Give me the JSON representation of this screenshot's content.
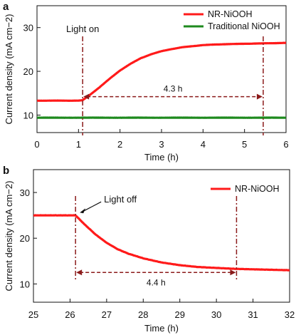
{
  "colors": {
    "nr": "#ff1a1a",
    "trad": "#1e8a1e",
    "annot": "#8b1a1a",
    "axis": "#111111"
  },
  "chart_data": [
    {
      "panel_label": "a",
      "type": "line",
      "xlabel": "Time (h)",
      "ylabel": "Current density (mA cm−2)",
      "xlim": [
        0,
        6
      ],
      "ylim": [
        6,
        35
      ],
      "xticks": [
        0,
        1,
        2,
        3,
        4,
        5,
        6
      ],
      "yticks": [
        10,
        20,
        30
      ],
      "legend_position": "top-right",
      "series": [
        {
          "name": "NR-NiOOH",
          "color_key": "nr",
          "x": [
            0,
            0.5,
            1.0,
            1.1,
            1.3,
            1.5,
            1.75,
            2.0,
            2.25,
            2.5,
            2.75,
            3.0,
            3.25,
            3.5,
            4.0,
            4.5,
            5.0,
            5.5,
            6.0
          ],
          "y": [
            13.3,
            13.3,
            13.3,
            13.4,
            14.8,
            16.3,
            18.3,
            20.2,
            21.7,
            23.0,
            23.9,
            24.6,
            25.1,
            25.5,
            26.0,
            26.2,
            26.3,
            26.4,
            26.5
          ]
        },
        {
          "name": "Traditional NiOOH",
          "color_key": "trad",
          "x": [
            0,
            6
          ],
          "y": [
            9.4,
            9.4
          ]
        }
      ],
      "annotations": {
        "light_label": "Light on",
        "event_x": 1.1,
        "end_x": 5.45,
        "span_y": 14.2,
        "span_label": "4.3 h"
      }
    },
    {
      "panel_label": "b",
      "type": "line",
      "xlabel": "Time (h)",
      "ylabel": "Current density (mA cm−2)",
      "xlim": [
        25,
        32
      ],
      "ylim": [
        6,
        35
      ],
      "xticks": [
        25,
        26,
        27,
        28,
        29,
        30,
        31,
        32
      ],
      "yticks": [
        10,
        20,
        30
      ],
      "legend_position": "top-right",
      "series": [
        {
          "name": "NR-NiOOH",
          "color_key": "nr",
          "x": [
            25,
            25.5,
            26.0,
            26.15,
            26.4,
            26.7,
            27.0,
            27.3,
            27.6,
            28.0,
            28.5,
            29.0,
            29.5,
            30.0,
            30.5,
            31.0,
            31.5,
            32.0
          ],
          "y": [
            25.0,
            25.0,
            25.0,
            25.0,
            23.0,
            20.8,
            19.0,
            17.6,
            16.6,
            15.6,
            14.7,
            14.1,
            13.7,
            13.5,
            13.3,
            13.2,
            13.1,
            13.0
          ]
        }
      ],
      "annotations": {
        "light_label": "Light off",
        "event_x": 26.15,
        "end_x": 30.55,
        "span_y": 12.5,
        "span_label": "4.4 h"
      }
    }
  ]
}
